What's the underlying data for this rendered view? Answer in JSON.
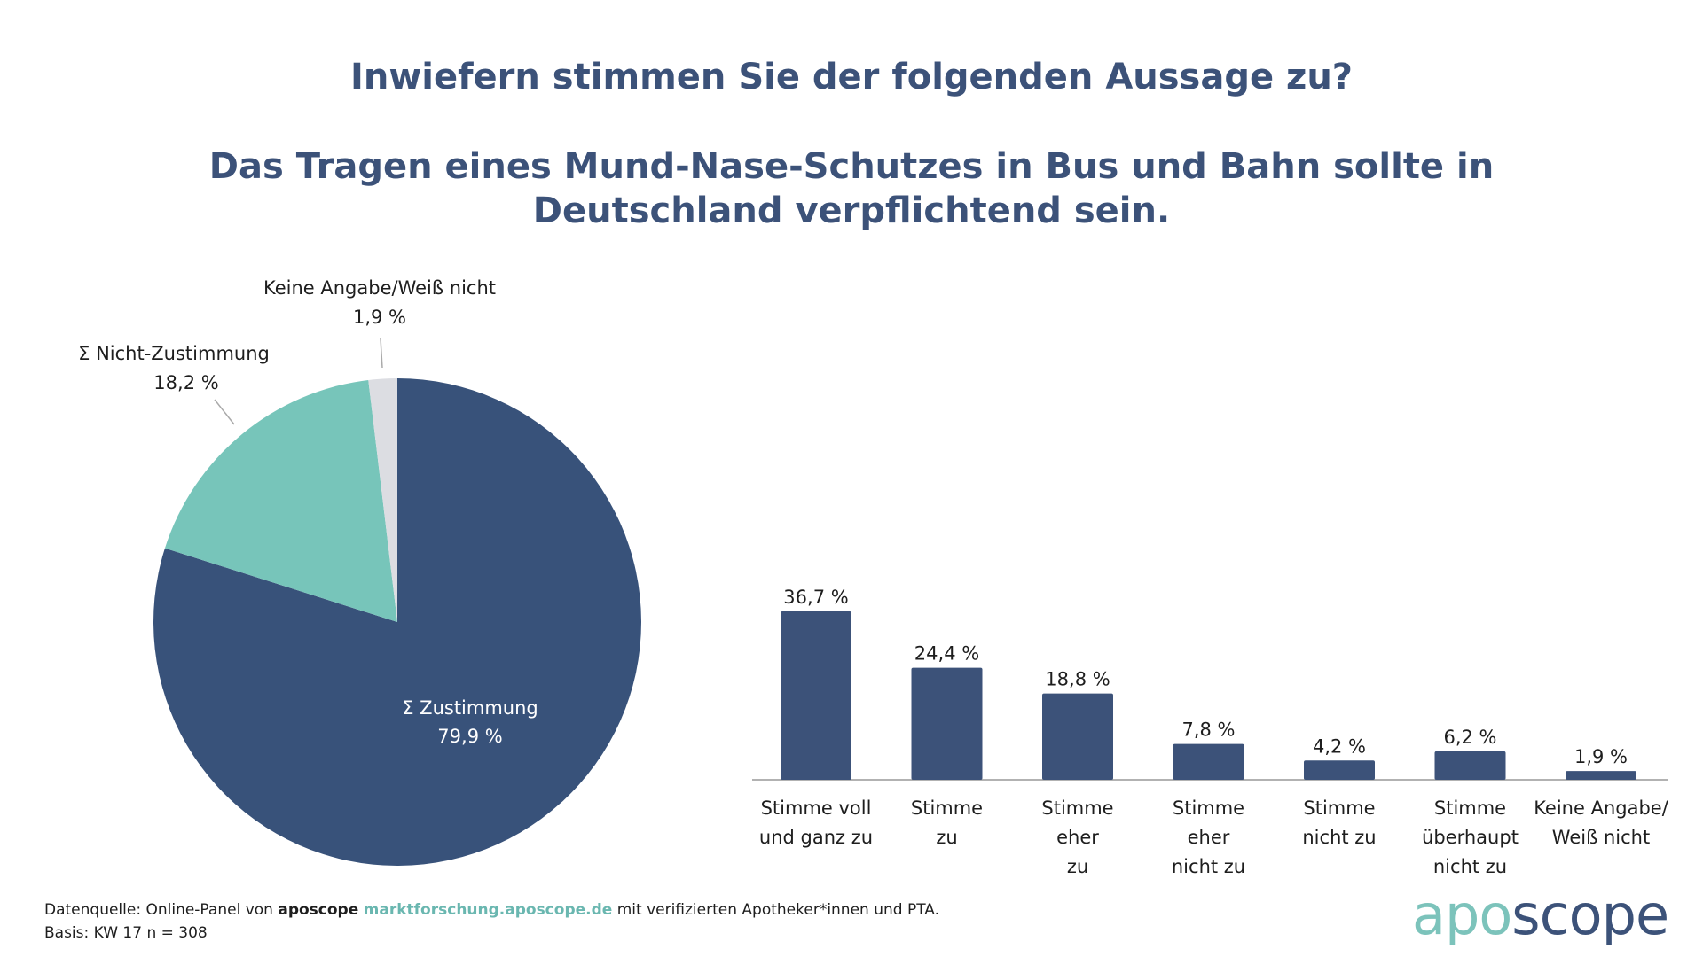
{
  "header": {
    "question": "Inwiefern stimmen Sie der folgenden Aussage zu?",
    "statement": "Das Tragen eines Mund-Nase-Schutzes in Bus und Bahn sollte in Deutschland verpflichtend sein."
  },
  "colors": {
    "title": "#3c5279",
    "bar": "#3c5279",
    "pie_agree": "#38527a",
    "pie_disagree": "#77c5ba",
    "pie_unknown": "#dcdde2",
    "axis": "#999999",
    "link": "#6ab7b0"
  },
  "chart_data": [
    {
      "type": "pie",
      "slices": [
        {
          "label": "Σ Zustimmung",
          "value": 79.9,
          "value_label": "79,9 %",
          "color": "#38527a"
        },
        {
          "label": "Σ Nicht-Zustimmung",
          "value": 18.2,
          "value_label": "18,2 %",
          "color": "#77c5ba"
        },
        {
          "label": "Keine Angabe/Weiß nicht",
          "value": 1.9,
          "value_label": "1,9 %",
          "color": "#dcdde2"
        }
      ]
    },
    {
      "type": "bar",
      "categories": [
        [
          "Stimme voll",
          "und ganz zu"
        ],
        [
          "Stimme",
          "zu"
        ],
        [
          "Stimme",
          "eher",
          "zu"
        ],
        [
          "Stimme",
          "eher",
          "nicht zu"
        ],
        [
          "Stimme",
          "nicht zu"
        ],
        [
          "Stimme",
          "überhaupt",
          "nicht zu"
        ],
        [
          "Keine Angabe/",
          "Weiß nicht"
        ]
      ],
      "values": [
        36.7,
        24.4,
        18.8,
        7.8,
        4.2,
        6.2,
        1.9
      ],
      "value_labels": [
        "36,7 %",
        "24,4 %",
        "18,8 %",
        "7,8 %",
        "4,2 %",
        "6,2 %",
        "1,9 %"
      ],
      "color": "#3c5279"
    }
  ],
  "footer": {
    "source_prefix": "Datenquelle: Online-Panel von ",
    "source_brand": "aposcope",
    "source_link": "marktforschung.aposcope.de",
    "source_suffix": " mit verifizierten Apotheker*innen und PTA.",
    "basis": "Basis: KW 17 n = 308"
  },
  "logo": {
    "part1": "apo",
    "part2": "scope"
  }
}
